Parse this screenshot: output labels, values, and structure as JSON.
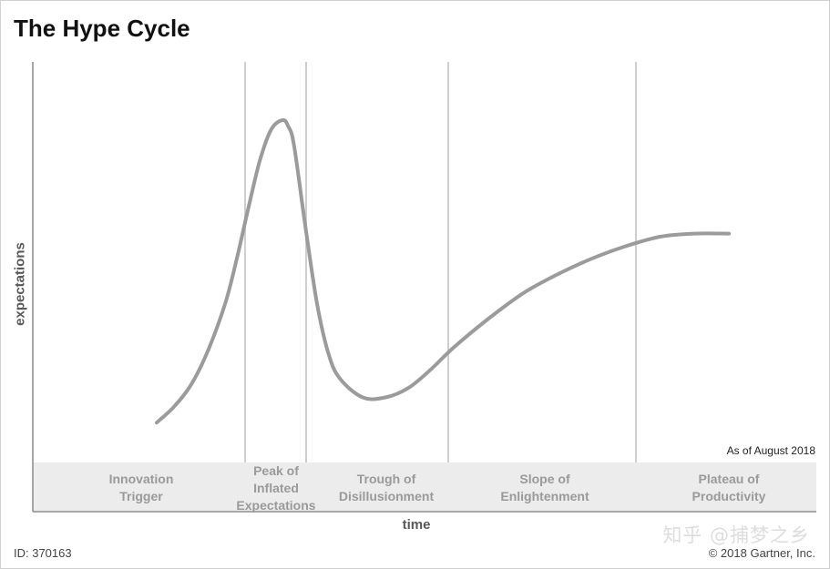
{
  "title": "The Hype Cycle",
  "chart_data": {
    "type": "line",
    "title": "The Hype Cycle",
    "xlabel": "time",
    "ylabel": "expectations",
    "grid": false,
    "phases": [
      {
        "name": "Innovation Trigger",
        "lines": [
          "Innovation",
          "Trigger"
        ]
      },
      {
        "name": "Peak of Inflated Expectations",
        "lines": [
          "Peak of",
          "Inflated",
          "Expectations"
        ]
      },
      {
        "name": "Trough of Disillusionment",
        "lines": [
          "Trough of",
          "Disillusionment"
        ]
      },
      {
        "name": "Slope of Enlightenment",
        "lines": [
          "Slope of",
          "Enlightenment"
        ]
      },
      {
        "name": "Plateau of Productivity",
        "lines": [
          "Plateau of",
          "Productivity"
        ]
      }
    ],
    "series": [
      {
        "line_color": "#9b9b9b",
        "x": [
          0.0,
          0.03,
          0.06,
          0.09,
          0.12,
          0.14,
          0.16,
          0.18,
          0.2,
          0.22,
          0.23,
          0.24,
          0.26,
          0.28,
          0.3,
          0.32,
          0.36,
          0.4,
          0.44,
          0.48,
          0.52,
          0.58,
          0.64,
          0.7,
          0.76,
          0.82,
          0.88,
          0.94,
          1.0
        ],
        "y": [
          0.04,
          0.09,
          0.16,
          0.27,
          0.42,
          0.56,
          0.72,
          0.87,
          0.97,
          1.0,
          0.98,
          0.92,
          0.66,
          0.42,
          0.26,
          0.18,
          0.12,
          0.12,
          0.15,
          0.21,
          0.28,
          0.37,
          0.45,
          0.51,
          0.56,
          0.6,
          0.63,
          0.64,
          0.64
        ]
      }
    ]
  },
  "annotation": "As of August 2018",
  "footer_id": "ID: 370163",
  "copyright": "© 2018 Gartner, Inc.",
  "watermark": "知乎 @捕梦之乡"
}
